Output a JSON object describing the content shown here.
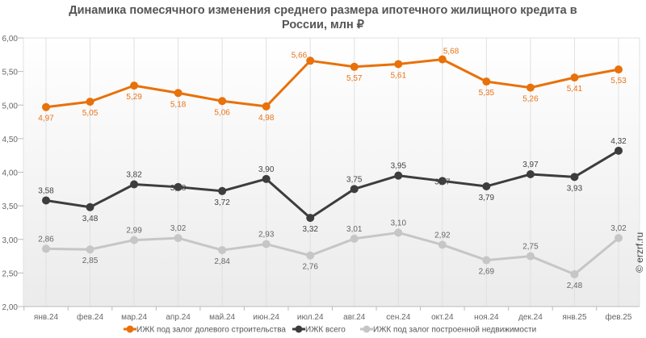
{
  "chart_data": {
    "type": "line",
    "title_line1": "Динамика помесячного изменения среднего размера ипотечного жилищного кредита в",
    "title_line2": "России, млн ₽",
    "xlabel": "",
    "ylabel": "",
    "ylim": [
      2.0,
      6.0
    ],
    "yticks": [
      "2,00",
      "2,50",
      "3,00",
      "3,50",
      "4,00",
      "4,50",
      "5,00",
      "5,50",
      "6,00"
    ],
    "ytick_values": [
      2.0,
      2.5,
      3.0,
      3.5,
      4.0,
      4.5,
      5.0,
      5.5,
      6.0
    ],
    "grid": true,
    "legend_position": "bottom",
    "categories": [
      "янв.24",
      "фев.24",
      "мар.24",
      "апр.24",
      "май.24",
      "июн.24",
      "июл.24",
      "авг.24",
      "сен.24",
      "окт.24",
      "ноя.24",
      "дек.24",
      "янв.25",
      "фев.25"
    ],
    "series": [
      {
        "name": "ИЖК под залог долевого строительства",
        "color": "#e8710a",
        "label_color": "#e8731a",
        "values": [
          4.97,
          5.05,
          5.29,
          5.18,
          5.06,
          4.98,
          5.66,
          5.57,
          5.61,
          5.68,
          5.35,
          5.26,
          5.41,
          5.53
        ],
        "labels": [
          "4,97",
          "5,05",
          "5,29",
          "5,18",
          "5,06",
          "4,98",
          "5,66",
          "5,57",
          "5,61",
          "5,68",
          "5,35",
          "5,26",
          "5,41",
          "5,53"
        ],
        "label_pos": [
          "below",
          "below",
          "below",
          "below",
          "below",
          "below",
          "above-left",
          "below",
          "below",
          "above-right",
          "below",
          "below",
          "below",
          "below"
        ]
      },
      {
        "name": "ИЖК всего",
        "color": "#3d3d3d",
        "label_color": "#444444",
        "values": [
          3.58,
          3.48,
          3.82,
          3.78,
          3.72,
          3.9,
          3.32,
          3.75,
          3.95,
          3.87,
          3.79,
          3.97,
          3.93,
          4.32
        ],
        "labels": [
          "3,58",
          "3,48",
          "3,82",
          "3,78",
          "3,72",
          "3,90",
          "3,32",
          "3,75",
          "3,95",
          "3,87",
          "3,79",
          "3,97",
          "3,93",
          "4,32"
        ],
        "label_pos": [
          "above",
          "below",
          "above",
          "center",
          "below",
          "above",
          "below",
          "above",
          "above",
          "center",
          "below",
          "above",
          "below",
          "above"
        ]
      },
      {
        "name": "ИЖК под залог построенной недвижимости",
        "color": "#c6c6c6",
        "label_color": "#666666",
        "values": [
          2.86,
          2.85,
          2.99,
          3.02,
          2.84,
          2.93,
          2.76,
          3.01,
          3.1,
          2.92,
          2.69,
          2.75,
          2.48,
          3.02
        ],
        "labels": [
          "2,86",
          "2,85",
          "2,99",
          "3,02",
          "2,84",
          "2,93",
          "2,76",
          "3,01",
          "3,10",
          "2,92",
          "2,69",
          "2,75",
          "2,48",
          "3,02"
        ],
        "label_pos": [
          "above",
          "below",
          "above",
          "above",
          "below",
          "above",
          "below",
          "above",
          "above",
          "above",
          "below",
          "above",
          "below",
          "above"
        ]
      }
    ]
  },
  "watermark": "© erzrf.ru"
}
